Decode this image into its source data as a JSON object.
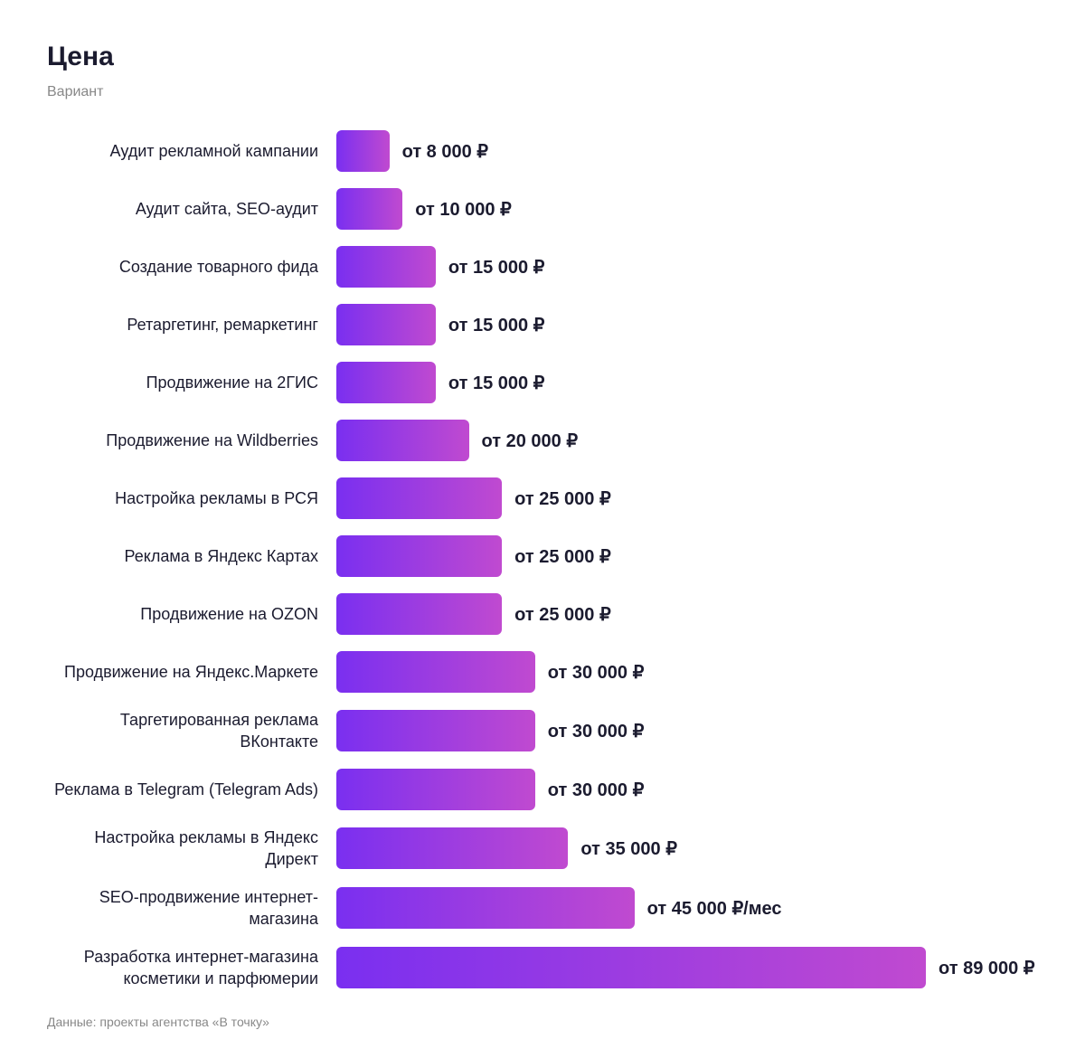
{
  "chart_data": {
    "type": "bar",
    "orientation": "horizontal",
    "title": "Цена",
    "subtitle": "Вариант",
    "categories": [
      "Аудит рекламной кампании",
      "Аудит сайта, SEO-аудит",
      "Создание товарного фида",
      "Ретаргетинг, ремаркетинг",
      "Продвижение на 2ГИС",
      "Продвижение на Wildberries",
      "Настройка рекламы в РСЯ",
      "Реклама в Яндекс Картах",
      "Продвижение на OZON",
      "Продвижение на Яндекс.Маркете",
      "Таргетированная реклама ВКонтакте",
      "Реклама в Telegram (Telegram Ads)",
      "Настройка рекламы в Яндекс Директ",
      "SEO-продвижение интернет-магазина",
      "Разработка интернет-магазина косметики и парфюмерии"
    ],
    "values": [
      8000,
      10000,
      15000,
      15000,
      15000,
      20000,
      25000,
      25000,
      25000,
      30000,
      30000,
      30000,
      35000,
      45000,
      89000
    ],
    "value_labels": [
      "от 8 000 ₽",
      "от 10 000 ₽",
      "от 15 000 ₽",
      "от 15 000 ₽",
      "от 15 000 ₽",
      "от 20 000 ₽",
      "от 25 000 ₽",
      "от 25 000 ₽",
      "от 25 000 ₽",
      "от 30 000 ₽",
      "от 30 000 ₽",
      "от 30 000 ₽",
      "от 35 000 ₽",
      "от 45 000 ₽/мес",
      "от 89 000 ₽"
    ],
    "color": [
      "#7a2ff0",
      "#c04ad0"
    ],
    "source": "Данные: проекты агентства «В точку»"
  }
}
